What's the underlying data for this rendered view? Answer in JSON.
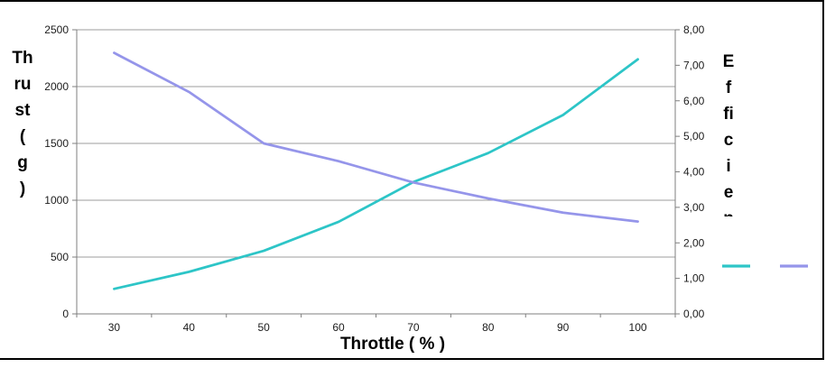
{
  "frame": {
    "background": "#ffffff",
    "border_color": "#000000"
  },
  "colors": {
    "thrust_line": "#2dc5c7",
    "efficiency_line": "#9595ea",
    "gridline": "#9d9d9d",
    "axis_line": "#7f7f7f",
    "tick_text": "#1c1c1c"
  },
  "chart_data": {
    "type": "line",
    "title": "",
    "categories": [
      30,
      40,
      50,
      60,
      70,
      80,
      90,
      100
    ],
    "series": [
      {
        "name": "Thrust ( g )",
        "axis": "left",
        "color": "#2dc5c7",
        "values": [
          220,
          370,
          555,
          810,
          1160,
          1415,
          1750,
          2240
        ]
      },
      {
        "name": "Efficien",
        "axis": "right",
        "color": "#9595ea",
        "values": [
          7.35,
          6.25,
          4.8,
          4.3,
          3.7,
          3.25,
          2.85,
          2.6
        ]
      }
    ],
    "x_axis": {
      "title": "Throttle ( % )",
      "tick_labels": [
        "30",
        "40",
        "50",
        "60",
        "70",
        "80",
        "90",
        "100"
      ]
    },
    "left_axis": {
      "title": "Thrust ( g )",
      "title_lines": [
        "Th",
        "ru",
        "st",
        "(",
        "g",
        ")"
      ],
      "min": 0,
      "max": 2500,
      "step": 500,
      "tick_labels": [
        "0",
        "500",
        "1000",
        "1500",
        "2000",
        "2500"
      ]
    },
    "right_axis": {
      "title": "Efficien",
      "title_lines": [
        "E",
        "f",
        "fi",
        "c",
        "i",
        "e",
        "n"
      ],
      "min": 0,
      "max": 8,
      "step": 1,
      "tick_labels": [
        "0,00",
        "1,00",
        "2,00",
        "3,00",
        "4,00",
        "5,00",
        "6,00",
        "7,00",
        "8,00"
      ]
    },
    "gridlines": true,
    "legend": {
      "position": "right",
      "entries": [
        {
          "label": "",
          "color": "#2dc5c7"
        },
        {
          "label": "",
          "color": "#9595ea"
        }
      ]
    }
  }
}
